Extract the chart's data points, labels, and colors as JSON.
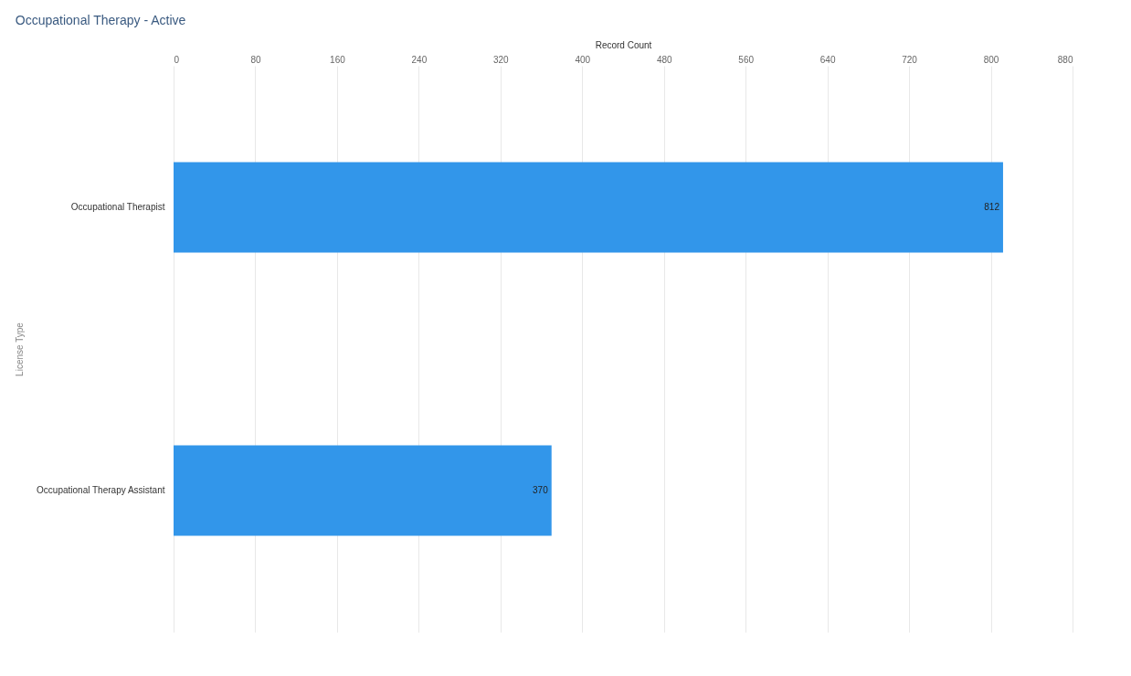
{
  "chart_data": {
    "type": "bar",
    "orientation": "horizontal",
    "title": "Occupational Therapy - Active",
    "xlabel": "Record Count",
    "ylabel": "License Type",
    "categories": [
      "Occupational Therapist",
      "Occupational Therapy Assistant"
    ],
    "values": [
      812,
      370
    ],
    "color": "#3296ea",
    "xlim": [
      0,
      880
    ],
    "xticks": [
      0,
      80,
      160,
      240,
      320,
      400,
      480,
      560,
      640,
      720,
      800,
      880
    ],
    "grid": "x",
    "data_labels": true
  }
}
